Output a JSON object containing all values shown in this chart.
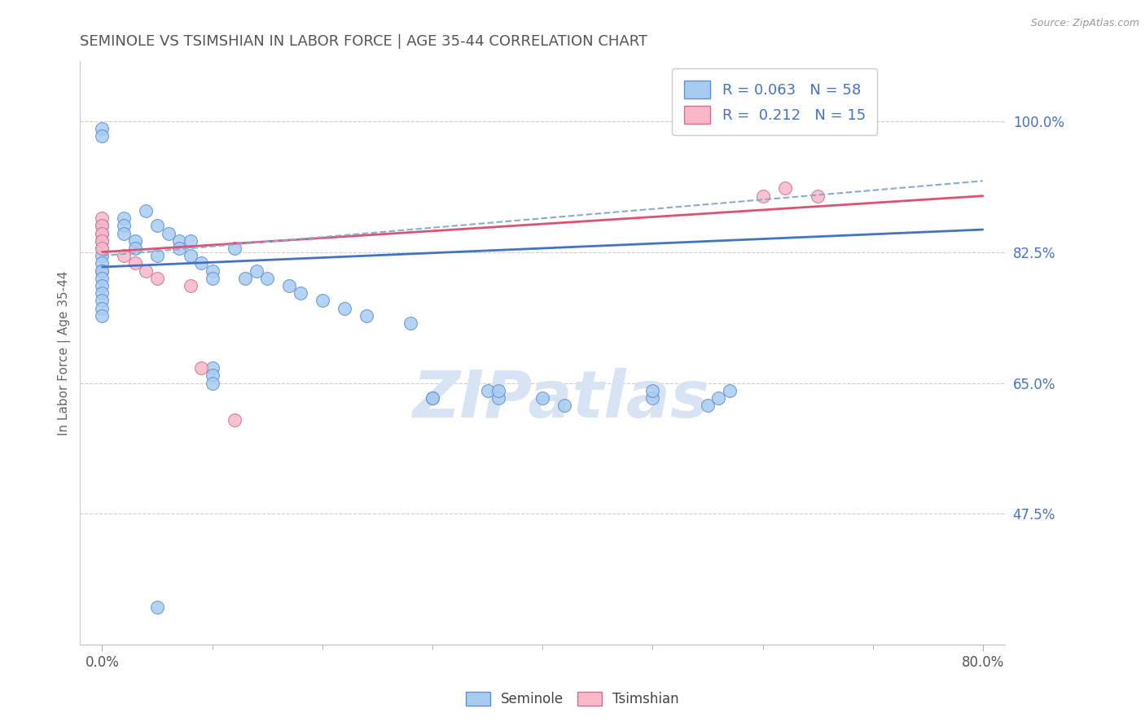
{
  "title": "SEMINOLE VS TSIMSHIAN IN LABOR FORCE | AGE 35-44 CORRELATION CHART",
  "source_text": "Source: ZipAtlas.com",
  "ylabel": "In Labor Force | Age 35-44",
  "legend_label1": "Seminole",
  "legend_label2": "Tsimshian",
  "R1": 0.063,
  "N1": 58,
  "R2": 0.212,
  "N2": 15,
  "xlim": [
    -0.02,
    0.82
  ],
  "ylim": [
    0.3,
    1.08
  ],
  "yticks": [
    0.475,
    0.65,
    0.825,
    1.0
  ],
  "ytick_labels": [
    "47.5%",
    "65.0%",
    "82.5%",
    "100.0%"
  ],
  "xtick_vals": [
    0.0,
    0.8
  ],
  "xtick_labels": [
    "0.0%",
    "80.0%"
  ],
  "color_seminole_fill": "#A8CCF0",
  "color_seminole_edge": "#6090D0",
  "color_tsimshian_fill": "#F8B8C8",
  "color_tsimshian_edge": "#D07090",
  "color_line_seminole": "#4472C4",
  "color_line_tsimshian": "#E05070",
  "color_dashed": "#8AAAD0",
  "color_ytick_label": "#4472C4",
  "watermark_text": "ZIPatlas",
  "watermark_color": "#D8E4F4",
  "seminole_x": [
    0.0,
    0.0,
    0.0,
    0.0,
    0.0,
    0.0,
    0.0,
    0.0,
    0.0,
    0.0,
    0.0,
    0.0,
    0.0,
    0.0,
    0.0,
    0.0,
    0.02,
    0.02,
    0.02,
    0.03,
    0.03,
    0.04,
    0.05,
    0.05,
    0.06,
    0.07,
    0.07,
    0.08,
    0.08,
    0.09,
    0.1,
    0.1,
    0.12,
    0.13,
    0.14,
    0.15,
    0.17,
    0.18,
    0.2,
    0.22,
    0.24,
    0.28,
    0.3,
    0.3,
    0.35,
    0.36,
    0.36,
    0.4,
    0.42,
    0.5,
    0.5,
    0.55,
    0.56,
    0.57,
    0.1,
    0.1,
    0.1,
    0.05
  ],
  "seminole_y": [
    0.99,
    0.98,
    0.86,
    0.85,
    0.84,
    0.83,
    0.82,
    0.81,
    0.8,
    0.8,
    0.79,
    0.78,
    0.77,
    0.76,
    0.75,
    0.74,
    0.87,
    0.86,
    0.85,
    0.84,
    0.83,
    0.88,
    0.86,
    0.82,
    0.85,
    0.84,
    0.83,
    0.84,
    0.82,
    0.81,
    0.8,
    0.79,
    0.83,
    0.79,
    0.8,
    0.79,
    0.78,
    0.77,
    0.76,
    0.75,
    0.74,
    0.73,
    0.63,
    0.63,
    0.64,
    0.63,
    0.64,
    0.63,
    0.62,
    0.63,
    0.64,
    0.62,
    0.63,
    0.64,
    0.67,
    0.66,
    0.65,
    0.35
  ],
  "tsimshian_x": [
    0.0,
    0.0,
    0.0,
    0.0,
    0.0,
    0.02,
    0.03,
    0.04,
    0.05,
    0.08,
    0.09,
    0.12,
    0.6,
    0.62,
    0.65
  ],
  "tsimshian_y": [
    0.87,
    0.86,
    0.85,
    0.84,
    0.83,
    0.82,
    0.81,
    0.8,
    0.79,
    0.78,
    0.67,
    0.6,
    0.9,
    0.91,
    0.9
  ],
  "sem_trend_x0": 0.0,
  "sem_trend_y0": 0.805,
  "sem_trend_x1": 0.8,
  "sem_trend_y1": 0.855,
  "tsi_trend_x0": 0.0,
  "tsi_trend_y0": 0.825,
  "tsi_trend_x1": 0.8,
  "tsi_trend_y1": 0.9,
  "dash_trend_x0": 0.0,
  "dash_trend_y0": 0.82,
  "dash_trend_x1": 0.8,
  "dash_trend_y1": 0.92
}
